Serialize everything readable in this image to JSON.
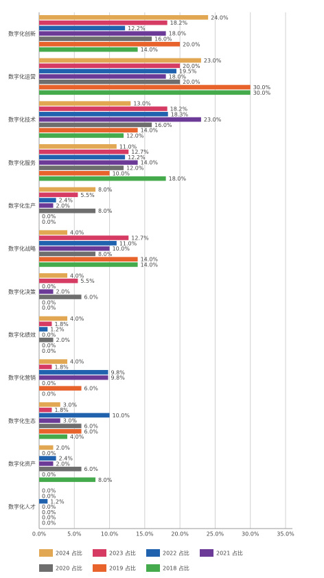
{
  "chart_data": {
    "type": "hbar",
    "categories": [
      "数字化创新",
      "数字化运营",
      "数字化技术",
      "数字化服务",
      "数字化生产",
      "数字化战略",
      "数字化决策",
      "数字化绩效",
      "数字化营销",
      "数字化生态",
      "数字化资产",
      "数字化人才"
    ],
    "series": [
      {
        "name": "2024 占比",
        "color": "#e2a752",
        "values": [
          24.0,
          23.0,
          13.0,
          11.0,
          8.0,
          4.0,
          4.0,
          4.0,
          4.0,
          3.0,
          2.0,
          0.0
        ],
        "value_labels": [
          "24.0%",
          "23.0%",
          "13.0%",
          "11.0%",
          "8.0%",
          "4.0%",
          "4.0%",
          "4.0%",
          "4.0%",
          "3.0%",
          "2.0%",
          "0.0%"
        ]
      },
      {
        "name": "2023 占比",
        "color": "#d63b63",
        "values": [
          18.2,
          20.0,
          18.2,
          12.7,
          5.5,
          12.7,
          5.5,
          1.8,
          1.8,
          1.8,
          0.0,
          0.0
        ],
        "value_labels": [
          "18.2%",
          "20.0%",
          "18.2%",
          "12.7%",
          "5.5%",
          "12.7%",
          "5.5%",
          "1.8%",
          "1.8%",
          "1.8%",
          "0.0%",
          "0.0%"
        ]
      },
      {
        "name": "2022 占比",
        "color": "#2162ae",
        "values": [
          12.2,
          19.5,
          18.3,
          12.2,
          2.4,
          11.0,
          0.0,
          1.2,
          9.8,
          10.0,
          2.4,
          1.2
        ],
        "value_labels": [
          "12.2%",
          "19.5%",
          "18.3%",
          "12.2%",
          "2.4%",
          "11.0%",
          "0.0%",
          "1.2%",
          "9.8%",
          "10.0%",
          "2.4%",
          "1.2%"
        ]
      },
      {
        "name": "2021 占比",
        "color": "#6c3b97",
        "values": [
          18.0,
          18.0,
          23.0,
          14.0,
          2.0,
          10.0,
          2.0,
          0.0,
          9.8,
          3.0,
          2.0,
          0.0
        ],
        "value_labels": [
          "18.0%",
          "18.0%",
          "23.0%",
          "14.0%",
          "2.0%",
          "10.0%",
          "2.0%",
          "0.0%",
          "9.8%",
          "3.0%",
          "2.0%",
          "0.0%"
        ]
      },
      {
        "name": "2020 占比",
        "color": "#6e6e6e",
        "values": [
          16.0,
          20.0,
          16.0,
          12.0,
          8.0,
          8.0,
          6.0,
          2.0,
          0.0,
          6.0,
          6.0,
          0.0
        ],
        "value_labels": [
          "16.0%",
          "20.0%",
          "16.0%",
          "12.0%",
          "8.0%",
          "8.0%",
          "6.0%",
          "2.0%",
          "0.0%",
          "6.0%",
          "6.0%",
          "0.0%"
        ]
      },
      {
        "name": "2019 占比",
        "color": "#e8622b",
        "values": [
          20.0,
          30.0,
          14.0,
          10.0,
          0.0,
          14.0,
          0.0,
          0.0,
          6.0,
          6.0,
          0.0,
          0.0
        ],
        "value_labels": [
          "20.0%",
          "30.0%",
          "14.0%",
          "10.0%",
          "0.0%",
          "14.0%",
          "0.0%",
          "0.0%",
          "6.0%",
          "6.0%",
          "0.0%",
          "0.0%"
        ]
      },
      {
        "name": "2018 占比",
        "color": "#45aa4b",
        "values": [
          14.0,
          30.0,
          12.0,
          18.0,
          0.0,
          14.0,
          0.0,
          0.0,
          0.0,
          4.0,
          8.0,
          0.0
        ],
        "value_labels": [
          "14.0%",
          "30.0%",
          "12.0%",
          "18.0%",
          "0.0%",
          "14.0%",
          "0.0%",
          "0.0%",
          "0.0%",
          "4.0%",
          "8.0%",
          "0.0%"
        ]
      }
    ],
    "xlim": [
      0,
      35
    ],
    "xticks": [
      {
        "value": 0,
        "label": "0.0%"
      },
      {
        "value": 5,
        "label": "5.0%"
      },
      {
        "value": 10,
        "label": "10.0%"
      },
      {
        "value": 15,
        "label": "15.0%"
      },
      {
        "value": 20,
        "label": "20.0%"
      },
      {
        "value": 25,
        "label": "25.0%"
      },
      {
        "value": 30,
        "label": "30.0%"
      },
      {
        "value": 35,
        "label": "35.0%"
      }
    ],
    "grid": true
  }
}
